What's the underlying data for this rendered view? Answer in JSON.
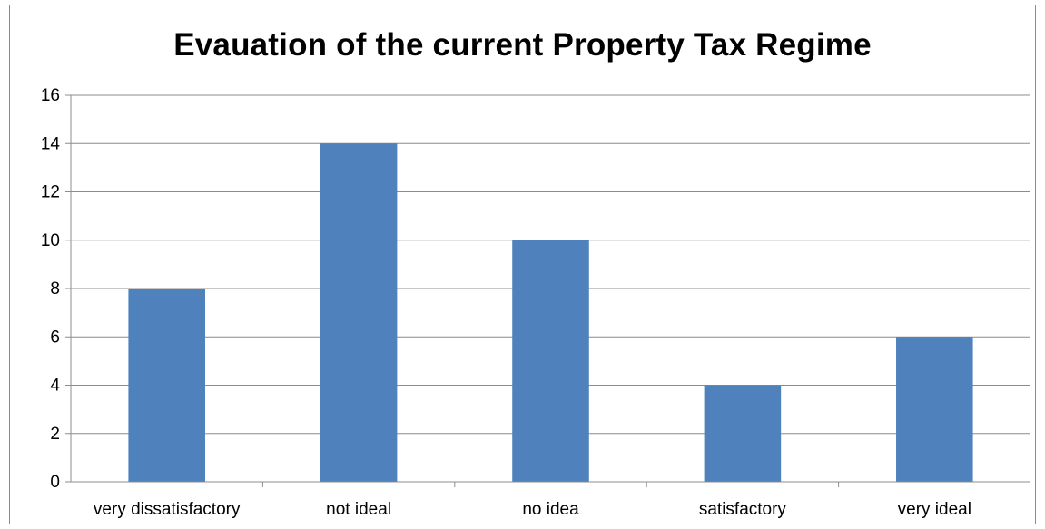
{
  "chart_data": {
    "type": "bar",
    "title": "Evauation of the current Property Tax Regime",
    "categories": [
      "very dissatisfactory",
      "not ideal",
      "no idea",
      "satisfactory",
      "very ideal"
    ],
    "values": [
      8,
      14,
      10,
      4,
      6
    ],
    "yticks": [
      0,
      2,
      4,
      6,
      8,
      10,
      12,
      14,
      16
    ],
    "ylim": [
      0,
      16
    ],
    "grid": true,
    "legend": "none",
    "bar_color": "#4f81bd",
    "grid_color": "#8c8c8c"
  }
}
